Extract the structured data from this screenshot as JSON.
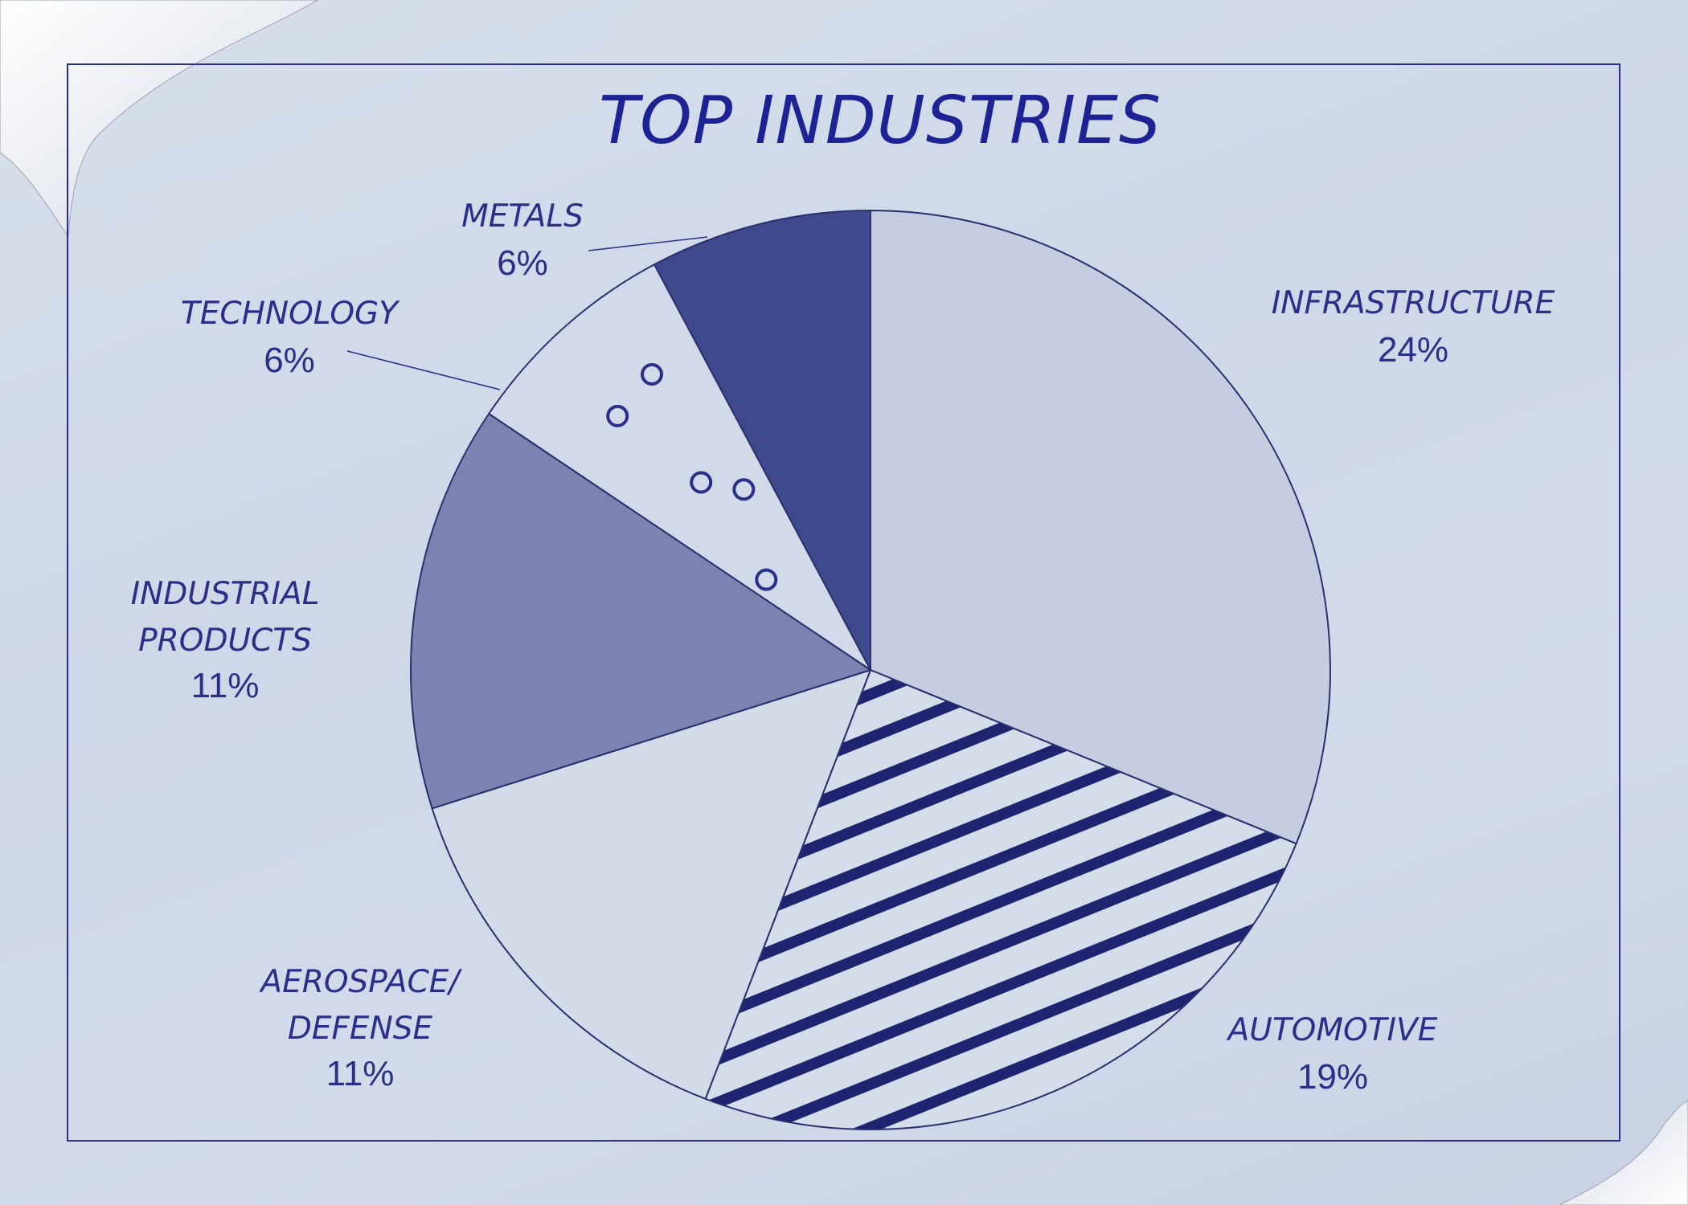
{
  "chart_data": {
    "type": "pie",
    "title": "TOP INDUSTRIES",
    "slices": [
      {
        "name": "INFRASTRUCTURE",
        "name_lines": [
          "INFRASTRUCTURE"
        ],
        "value_label": "24%",
        "value": 24,
        "fill": "#c6cde0",
        "pattern": "solid"
      },
      {
        "name": "AUTOMOTIVE",
        "name_lines": [
          "AUTOMOTIVE"
        ],
        "value_label": "19%",
        "value": 19,
        "fill": "#d5dcea",
        "pattern": "stripes"
      },
      {
        "name": "AEROSPACE/ DEFENSE",
        "name_lines": [
          "AEROSPACE/",
          "DEFENSE"
        ],
        "value_label": "11%",
        "value": 11,
        "fill": "#d3dae8",
        "pattern": "solid"
      },
      {
        "name": "INDUSTRIAL PRODUCTS",
        "name_lines": [
          "INDUSTRIAL",
          "PRODUCTS"
        ],
        "value_label": "11%",
        "value": 11,
        "fill": "#7b84b1",
        "pattern": "solid"
      },
      {
        "name": "TECHNOLOGY",
        "name_lines": [
          "TECHNOLOGY"
        ],
        "value_label": "6%",
        "value": 6,
        "fill": "#d2d9e8",
        "pattern": "circles"
      },
      {
        "name": "METALS",
        "name_lines": [
          "METALS"
        ],
        "value_label": "6%",
        "value": 6,
        "fill": "#3e4a8c",
        "pattern": "solid"
      }
    ],
    "start_angle_deg": 0,
    "direction": "clockwise",
    "legend": "none"
  },
  "colors": {
    "ink": "#1d2394",
    "frame": "#2a2f8a",
    "stripe": "#1f2470"
  }
}
